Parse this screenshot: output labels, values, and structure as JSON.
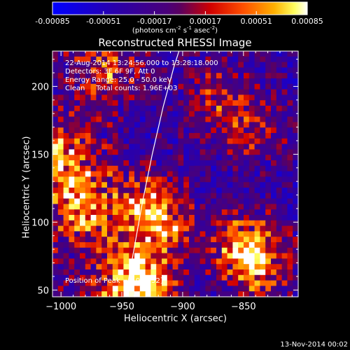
{
  "chart_data": {
    "type": "heatmap",
    "title": "Reconstructed RHESSI Image",
    "xlabel": "Heliocentric X (arcsec)",
    "ylabel": "Heliocentric Y (arcsec)",
    "xlim": [
      -1007,
      -805
    ],
    "ylim": [
      45,
      226
    ],
    "x_ticks": [
      -1000,
      -950,
      -900,
      -850
    ],
    "y_ticks": [
      50,
      100,
      150,
      200
    ],
    "colorbar": {
      "min": -0.00085,
      "max": 0.00085,
      "tick_values": [
        -0.00085,
        -0.00051,
        -0.00017,
        0.00017,
        0.00051,
        0.00085
      ],
      "tick_labels": [
        "-0.00085",
        "-0.00051",
        "-0.00017",
        "0.00017",
        "0.00051",
        "0.00085"
      ],
      "unit_parts": [
        "(photons cm",
        "-2",
        " s",
        "-1",
        " asec",
        "-2",
        ")"
      ]
    },
    "annotations": [
      "22-Aug-2014 13:24:56.000 to 13:28:18.000",
      "Detectors: 3F 6F 9F, Att 0",
      "Energy Range: 25.0 - 50.0 keV",
      "Clean     Total counts: 1.96E+03"
    ],
    "peak_label": "Position of Peak = [-930,52]",
    "peak_position": [
      -930,
      52
    ],
    "limb_curve": [
      [
        -947,
        45
      ],
      [
        -940,
        80
      ],
      [
        -933,
        115
      ],
      [
        -925,
        150
      ],
      [
        -916,
        185
      ],
      [
        -907,
        215
      ],
      [
        -903,
        226
      ]
    ],
    "bright_regions": [
      {
        "x": -930,
        "y": 52,
        "amp": 0.00085
      },
      {
        "x": -935,
        "y": 112,
        "amp": 0.00065
      },
      {
        "x": -985,
        "y": 110,
        "amp": 0.00072
      },
      {
        "x": -1000,
        "y": 148,
        "amp": 0.0007
      },
      {
        "x": -945,
        "y": 62,
        "amp": 0.0006
      },
      {
        "x": -850,
        "y": 82,
        "amp": 0.00068
      },
      {
        "x": -835,
        "y": 65,
        "amp": 0.00058
      },
      {
        "x": -915,
        "y": 100,
        "amp": 0.00055
      },
      {
        "x": -960,
        "y": 210,
        "amp": 0.0005
      },
      {
        "x": -870,
        "y": 190,
        "amp": 0.00045
      },
      {
        "x": -840,
        "y": 170,
        "amp": 0.0004
      }
    ],
    "background_level": -0.0003,
    "grid": false
  },
  "footer": {
    "date": "13-Nov-2014 00:02"
  }
}
